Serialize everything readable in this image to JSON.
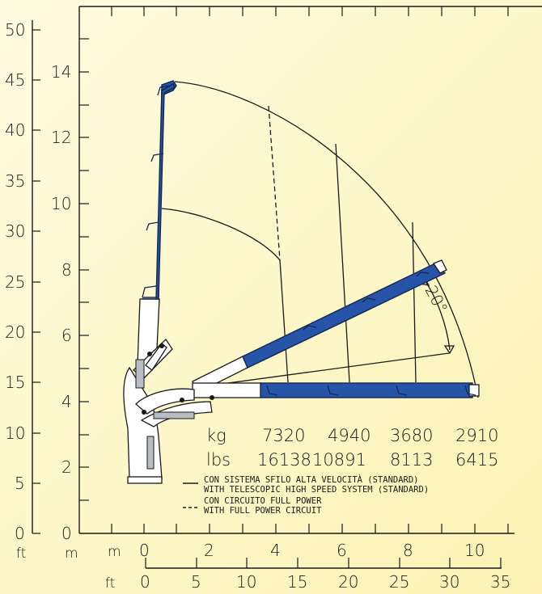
{
  "axes": {
    "ft_vertical_labels": [
      "50",
      "45",
      "40",
      "35",
      "30",
      "25",
      "20",
      "15",
      "10",
      "5",
      "0"
    ],
    "m_vertical_labels": [
      "14",
      "12",
      "10",
      "8",
      "6",
      "4",
      "2",
      "0"
    ],
    "unit_ft_vertical": "ft",
    "unit_m_vertical": "m",
    "m_horizontal_unit": "m",
    "m_horizontal_labels": [
      "0",
      "2",
      "4",
      "6",
      "8",
      "10"
    ],
    "ft_horizontal_unit": "ft",
    "ft_horizontal_labels": [
      "0",
      "5",
      "10",
      "15",
      "20",
      "25",
      "30",
      "35"
    ]
  },
  "angle_label": "20°",
  "loads": {
    "kg_unit": "kg",
    "kg_values": [
      "7320",
      "4940",
      "3680",
      "2910"
    ],
    "lbs_unit": "lbs",
    "lbs_values": [
      "16138",
      "10891",
      "8113",
      "6415"
    ]
  },
  "legend": {
    "solid_line_1": "CON SISTEMA SFILO ALTA VELOCITÀ (STANDARD)",
    "solid_line_2": "WITH TELESCOPIC HIGH SPEED SYSTEM (STANDARD)",
    "dashed_line_1": "CON CIRCUITO FULL POWER",
    "dashed_line_2": "WITH FULL POWER CIRCUIT"
  },
  "colors": {
    "boom_blue": "#2554a8",
    "background": "#fdf7c8"
  }
}
